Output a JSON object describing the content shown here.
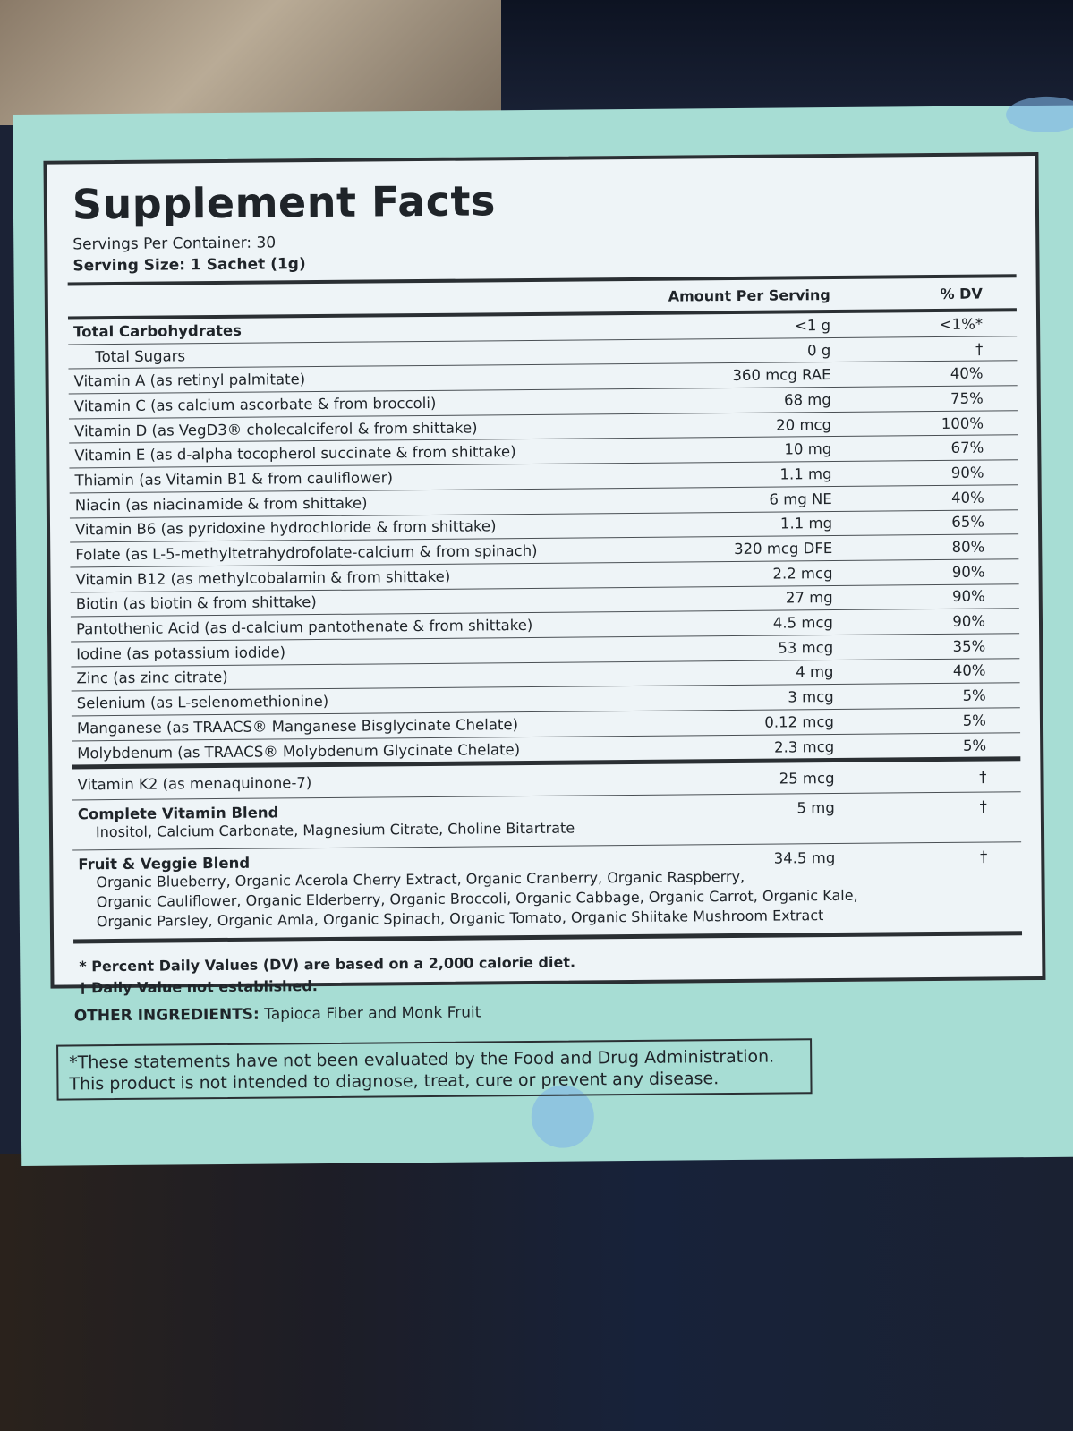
{
  "title": "Supplement Facts",
  "servings_per_container": "Servings Per Container: 30",
  "serving_size": "Serving Size: 1 Sachet (1g)",
  "headers": {
    "amount": "Amount Per Serving",
    "dv": "% DV"
  },
  "rows": [
    {
      "name": "Total Carbohydrates",
      "amount": "<1 g",
      "dv": "<1%*"
    },
    {
      "name": "Total Sugars",
      "amount": "0 g",
      "dv": "†"
    },
    {
      "name": "Vitamin A (as retinyl palmitate)",
      "amount": "360 mcg RAE",
      "dv": "40%"
    },
    {
      "name": "Vitamin C (as calcium ascorbate & from broccoli)",
      "amount": "68 mg",
      "dv": "75%"
    },
    {
      "name": "Vitamin D (as VegD3® cholecalciferol & from shittake)",
      "amount": "20 mcg",
      "dv": "100%"
    },
    {
      "name": "Vitamin E (as d-alpha tocopherol succinate & from shittake)",
      "amount": "10 mg",
      "dv": "67%"
    },
    {
      "name": "Thiamin (as Vitamin B1 & from cauliflower)",
      "amount": "1.1 mg",
      "dv": "90%"
    },
    {
      "name": "Niacin (as niacinamide & from shittake)",
      "amount": "6 mg NE",
      "dv": "40%"
    },
    {
      "name": "Vitamin B6 (as pyridoxine hydrochloride & from shittake)",
      "amount": "1.1 mg",
      "dv": "65%"
    },
    {
      "name": "Folate (as L-5-methyltetrahydrofolate-calcium & from spinach)",
      "amount": "320 mcg DFE",
      "dv": "80%"
    },
    {
      "name": "Vitamin B12 (as methylcobalamin & from shittake)",
      "amount": "2.2 mcg",
      "dv": "90%"
    },
    {
      "name": "Biotin (as biotin & from shittake)",
      "amount": "27 mg",
      "dv": "90%"
    },
    {
      "name": "Pantothenic Acid (as d-calcium pantothenate & from shittake)",
      "amount": "4.5 mcg",
      "dv": "90%"
    },
    {
      "name": "Iodine (as potassium iodide)",
      "amount": "53 mcg",
      "dv": "35%"
    },
    {
      "name": "Zinc (as zinc citrate)",
      "amount": "4 mg",
      "dv": "40%"
    },
    {
      "name": "Selenium (as L-selenomethionine)",
      "amount": "3 mcg",
      "dv": "5%"
    },
    {
      "name": "Manganese (as TRAACS® Manganese Bisglycinate Chelate)",
      "amount": "0.12 mcg",
      "dv": "5%"
    },
    {
      "name": "Molybdenum (as TRAACS® Molybdenum Glycinate Chelate)",
      "amount": "2.3 mcg",
      "dv": "5%"
    }
  ],
  "k2": {
    "name": "Vitamin K2 (as menaquinone-7)",
    "amount": "25 mcg",
    "dv": "†"
  },
  "vitamin_blend": {
    "name": "Complete Vitamin Blend",
    "amount": "5 mg",
    "dv": "†",
    "desc": "Inositol, Calcium Carbonate, Magnesium Citrate, Choline Bitartrate"
  },
  "fruit_blend": {
    "name": "Fruit & Veggie Blend",
    "amount": "34.5 mg",
    "dv": "†",
    "desc1": "Organic Blueberry, Organic Acerola Cherry Extract, Organic Cranberry, Organic Raspberry,",
    "desc2": "Organic Cauliflower, Organic Elderberry, Organic Broccoli, Organic Cabbage, Organic Carrot, Organic Kale,",
    "desc3": "Organic Parsley, Organic Amla, Organic Spinach, Organic Tomato, Organic Shiitake Mushroom Extract"
  },
  "footnote1": "* Percent Daily Values (DV) are based on a 2,000 calorie diet.",
  "footnote2": "† Daily Value not established.",
  "other_label": "OTHER INGREDIENTS:",
  "other_value": "Tapioca Fiber and Monk Fruit",
  "disclaimer1": "*These statements have not been evaluated by the Food and Drug Administration.",
  "disclaimer2": "This product is not intended to diagnose, treat, cure or prevent any disease."
}
